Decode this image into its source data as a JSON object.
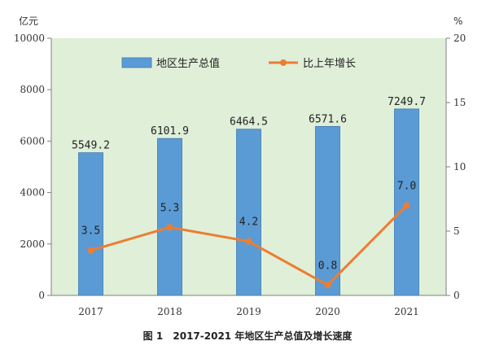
{
  "chart_data": {
    "type": "bar",
    "categories": [
      "2017",
      "2018",
      "2019",
      "2020",
      "2021"
    ],
    "series": [
      {
        "name": "地区生产总值",
        "type": "bar",
        "axis": "left",
        "values": [
          5549.2,
          6101.9,
          6464.5,
          6571.6,
          7249.7
        ],
        "labels": [
          "5549.2",
          "6101.9",
          "6464.5",
          "6571.6",
          "7249.7"
        ]
      },
      {
        "name": "比上年增长",
        "type": "line",
        "axis": "right",
        "values": [
          3.5,
          5.3,
          4.2,
          0.8,
          7.0
        ],
        "labels": [
          "3.5",
          "5.3",
          "4.2",
          "0.8",
          "7.0"
        ]
      }
    ],
    "left_axis": {
      "unit": "亿元",
      "ylim": [
        0,
        10000
      ],
      "ticks": [
        "0",
        "2000",
        "4000",
        "6000",
        "8000",
        "10000"
      ]
    },
    "right_axis": {
      "unit": "%",
      "ylim": [
        0,
        20
      ],
      "ticks": [
        "0",
        "5",
        "10",
        "15",
        "20"
      ]
    },
    "legend_placement": "top",
    "grid": false,
    "colors": {
      "plot_bg": "#e0efd8",
      "bar": "#5b9bd5",
      "bar_border": "#3f78b0",
      "line": "#ed7d31"
    }
  },
  "caption": {
    "figure_no": "图 1",
    "text": "2017-2021 年地区生产总值及增长速度"
  }
}
